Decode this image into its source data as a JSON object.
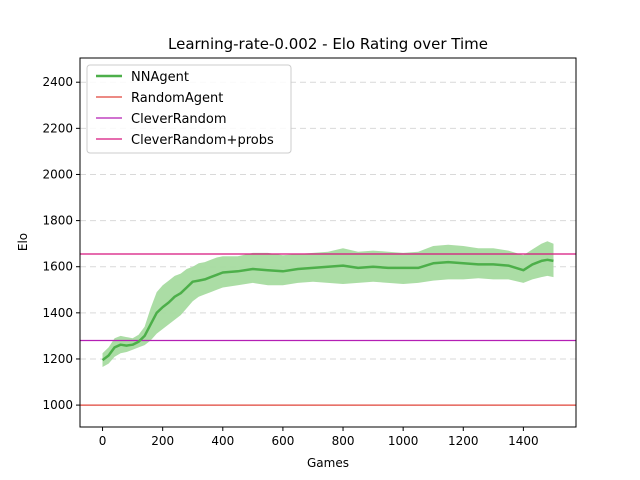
{
  "chart_data": {
    "type": "line",
    "title": "Learning-rate-0.002 - Elo Rating over Time",
    "xlabel": "Games",
    "ylabel": "Elo",
    "xlim": [
      -75,
      1575
    ],
    "ylim": [
      905,
      2505
    ],
    "xticks": [
      0,
      200,
      400,
      600,
      800,
      1000,
      1200,
      1400
    ],
    "yticks": [
      1000,
      1200,
      1400,
      1600,
      1800,
      2000,
      2200,
      2400
    ],
    "grid": true,
    "legend_position": "top-left",
    "series": [
      {
        "name": "NNAgent",
        "kind": "mean_with_band",
        "color": "#4daf4a",
        "band_color": "#a6dba0",
        "x": [
          0,
          20,
          40,
          60,
          80,
          100,
          120,
          140,
          160,
          180,
          200,
          220,
          240,
          260,
          280,
          300,
          320,
          340,
          360,
          380,
          400,
          450,
          500,
          550,
          600,
          650,
          700,
          750,
          800,
          850,
          900,
          950,
          1000,
          1050,
          1100,
          1150,
          1200,
          1250,
          1300,
          1350,
          1400,
          1430,
          1460,
          1480,
          1500
        ],
        "mean": [
          1195,
          1215,
          1250,
          1262,
          1258,
          1262,
          1275,
          1300,
          1350,
          1400,
          1425,
          1445,
          1470,
          1485,
          1510,
          1535,
          1540,
          1545,
          1555,
          1565,
          1575,
          1580,
          1590,
          1585,
          1580,
          1590,
          1595,
          1600,
          1605,
          1595,
          1600,
          1595,
          1595,
          1595,
          1615,
          1620,
          1615,
          1610,
          1610,
          1605,
          1585,
          1610,
          1625,
          1630,
          1625
        ],
        "lower": [
          1165,
          1180,
          1210,
          1225,
          1230,
          1240,
          1250,
          1260,
          1280,
          1310,
          1330,
          1350,
          1370,
          1390,
          1420,
          1450,
          1470,
          1480,
          1490,
          1500,
          1510,
          1520,
          1530,
          1520,
          1520,
          1530,
          1535,
          1530,
          1525,
          1530,
          1535,
          1530,
          1525,
          1530,
          1540,
          1545,
          1545,
          1550,
          1545,
          1545,
          1530,
          1545,
          1555,
          1560,
          1555
        ],
        "upper": [
          1225,
          1250,
          1290,
          1300,
          1295,
          1290,
          1305,
          1340,
          1420,
          1490,
          1520,
          1540,
          1560,
          1570,
          1590,
          1600,
          1615,
          1620,
          1630,
          1640,
          1645,
          1645,
          1660,
          1660,
          1650,
          1655,
          1660,
          1665,
          1680,
          1665,
          1670,
          1665,
          1660,
          1665,
          1690,
          1695,
          1690,
          1680,
          1680,
          1670,
          1650,
          1675,
          1700,
          1710,
          1700
        ]
      },
      {
        "name": "RandomAgent",
        "kind": "hline",
        "color": "#e0453a",
        "y": 1000
      },
      {
        "name": "CleverRandom",
        "kind": "hline",
        "color": "#b41fb4",
        "y": 1280
      },
      {
        "name": "CleverRandom+probs",
        "kind": "hline",
        "color": "#d8147e",
        "y": 1655
      }
    ]
  }
}
